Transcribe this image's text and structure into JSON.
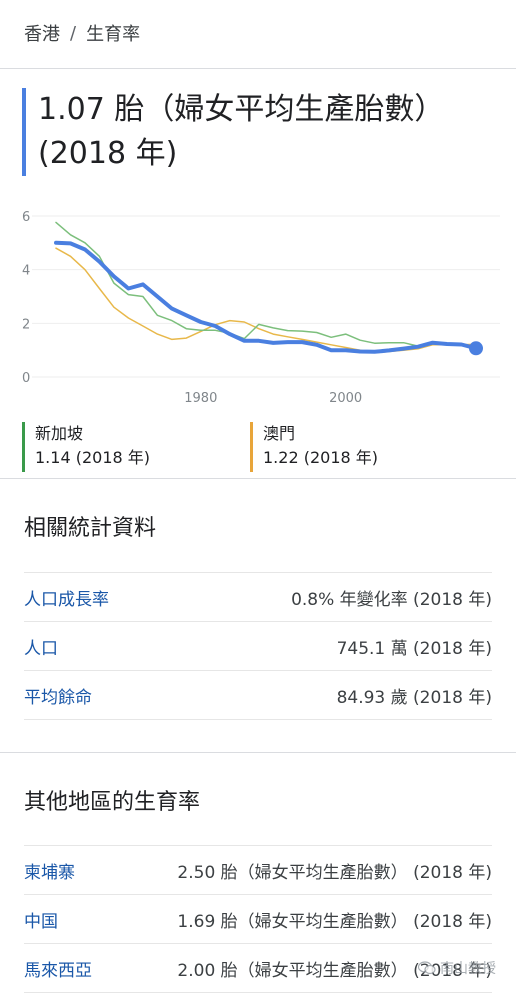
{
  "breadcrumb": {
    "location": "香港",
    "separator": "/",
    "topic": "生育率"
  },
  "headline": {
    "line1": "1.07 胎（婦女平均生產胎數）",
    "line2": "(2018 年)"
  },
  "chart_data": {
    "type": "line",
    "x_ticks": [
      1980,
      2000
    ],
    "y_ticks": [
      0,
      2,
      4,
      6
    ],
    "xlim": [
      1960,
      2018
    ],
    "ylim": [
      0,
      6
    ],
    "colors": {
      "hongkong": "#4a7fe0",
      "singapore": "#7cbf7c",
      "macau": "#e8b84a"
    },
    "series": [
      {
        "name": "香港",
        "color": "#4a7fe0",
        "x": [
          1960,
          1962,
          1964,
          1966,
          1968,
          1970,
          1972,
          1974,
          1976,
          1978,
          1980,
          1982,
          1984,
          1986,
          1988,
          1990,
          1992,
          1994,
          1996,
          1998,
          2000,
          2002,
          2004,
          2006,
          2008,
          2010,
          2012,
          2014,
          2016,
          2018
        ],
        "y": [
          5.0,
          4.98,
          4.75,
          4.3,
          3.75,
          3.3,
          3.45,
          3.0,
          2.55,
          2.3,
          2.05,
          1.9,
          1.6,
          1.35,
          1.35,
          1.27,
          1.3,
          1.3,
          1.2,
          1.0,
          1.0,
          0.95,
          0.94,
          0.99,
          1.06,
          1.13,
          1.28,
          1.23,
          1.21,
          1.07
        ]
      },
      {
        "name": "新加坡",
        "color": "#7cbf7c",
        "x": [
          1960,
          1962,
          1964,
          1966,
          1968,
          1970,
          1972,
          1974,
          1976,
          1978,
          1980,
          1982,
          1984,
          1986,
          1988,
          1990,
          1992,
          1994,
          1996,
          1998,
          2000,
          2002,
          2004,
          2006,
          2008,
          2010,
          2012,
          2014,
          2016,
          2018
        ],
        "y": [
          5.76,
          5.3,
          5.0,
          4.5,
          3.5,
          3.07,
          3.0,
          2.3,
          2.1,
          1.8,
          1.74,
          1.74,
          1.63,
          1.43,
          1.96,
          1.83,
          1.73,
          1.71,
          1.66,
          1.48,
          1.6,
          1.37,
          1.26,
          1.28,
          1.28,
          1.15,
          1.29,
          1.25,
          1.2,
          1.14
        ]
      },
      {
        "name": "澳門",
        "color": "#e8b84a",
        "x": [
          1960,
          1962,
          1964,
          1966,
          1968,
          1970,
          1972,
          1974,
          1976,
          1978,
          1980,
          1982,
          1984,
          1986,
          1988,
          1990,
          1992,
          1994,
          1996,
          1998,
          2000,
          2002,
          2004,
          2006,
          2008,
          2010,
          2012,
          2014,
          2016,
          2018
        ],
        "y": [
          4.8,
          4.5,
          4.0,
          3.3,
          2.6,
          2.2,
          1.9,
          1.6,
          1.4,
          1.45,
          1.7,
          1.95,
          2.1,
          2.05,
          1.8,
          1.6,
          1.5,
          1.4,
          1.3,
          1.2,
          1.1,
          1.0,
          0.9,
          0.95,
          1.0,
          1.05,
          1.2,
          1.2,
          1.2,
          1.22
        ]
      }
    ]
  },
  "legend": [
    {
      "name": "新加坡",
      "value": "1.14 (2018 年)",
      "color": "#3a9a4a"
    },
    {
      "name": "澳門",
      "value": "1.22 (2018 年)",
      "color": "#e8a53a"
    }
  ],
  "related": {
    "title": "相關統計資料",
    "rows": [
      {
        "label": "人口成長率",
        "value": "0.8% 年變化率 (2018 年)"
      },
      {
        "label": "人口",
        "value": "745.1 萬 (2018 年)"
      },
      {
        "label": "平均餘命",
        "value": "84.93 歲 (2018 年)"
      }
    ]
  },
  "other": {
    "title": "其他地區的生育率",
    "rows": [
      {
        "label": "柬埔寨",
        "value": "2.50 胎（婦女平均生產胎數） (2018 年)"
      },
      {
        "label": "中国",
        "value": "1.69 胎（婦女平均生產胎數） (2018 年)"
      },
      {
        "label": "馬來西亞",
        "value": "2.00 胎（婦女平均生產胎數） (2018 年)"
      }
    ]
  },
  "watermark": {
    "icon": "wechat-icon",
    "text": "南山教授"
  }
}
